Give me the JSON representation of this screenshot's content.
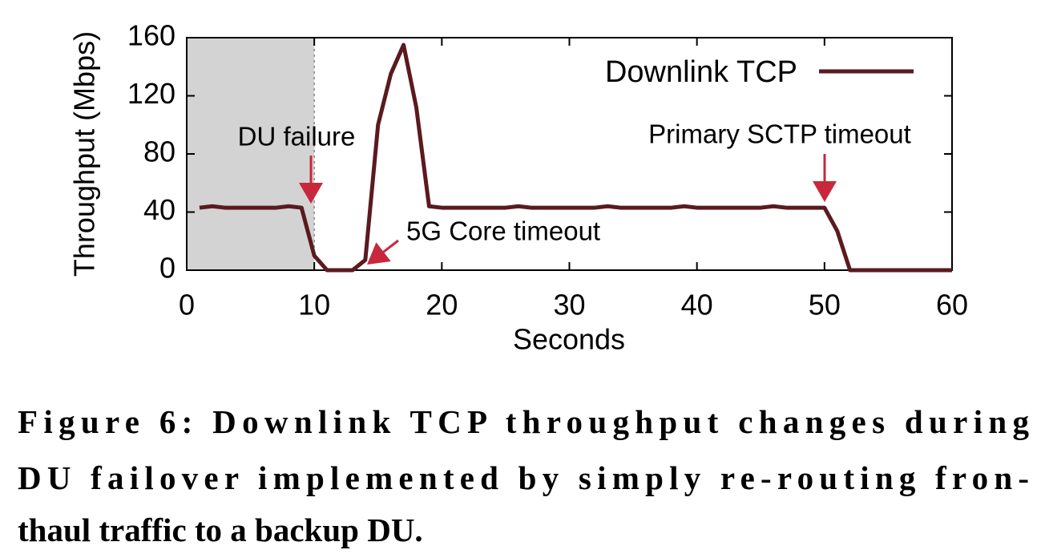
{
  "chart_data": {
    "type": "line",
    "xlabel": "Seconds",
    "ylabel": "Throughput (Mbps)",
    "x": [
      1,
      2,
      3,
      4,
      5,
      6,
      7,
      8,
      9,
      10,
      11,
      12,
      13,
      14,
      15,
      16,
      17,
      18,
      19,
      20,
      21,
      22,
      23,
      24,
      25,
      26,
      27,
      28,
      29,
      30,
      31,
      32,
      33,
      34,
      35,
      36,
      37,
      38,
      39,
      40,
      41,
      42,
      43,
      44,
      45,
      46,
      47,
      48,
      49,
      50,
      51,
      52,
      53,
      54,
      55,
      56,
      57,
      58,
      59,
      60
    ],
    "series": [
      {
        "name": "Downlink TCP",
        "color": "#5a1a1f",
        "values": [
          43,
          44,
          43,
          43,
          43,
          43,
          43,
          44,
          43,
          10,
          0,
          0,
          0,
          7,
          100,
          135,
          155,
          112,
          44,
          43,
          43,
          43,
          43,
          43,
          43,
          44,
          43,
          43,
          43,
          43,
          43,
          43,
          44,
          43,
          43,
          43,
          43,
          43,
          44,
          43,
          43,
          43,
          43,
          43,
          43,
          44,
          43,
          43,
          43,
          43,
          27,
          0,
          0,
          0,
          0,
          0,
          0,
          0,
          0,
          0
        ]
      }
    ],
    "xlim": [
      0,
      60
    ],
    "xticks": [
      0,
      10,
      20,
      30,
      40,
      50,
      60
    ],
    "ylim": [
      0,
      160
    ],
    "yticks": [
      0,
      40,
      80,
      120,
      160
    ],
    "shaded_x": [
      0,
      10
    ],
    "shade_color": "#d3d3d3",
    "legend": "top-right",
    "annotations": [
      "DU failure",
      "5G Core timeout",
      "Primary SCTP timeout"
    ],
    "annotation_color": "#c8283c"
  },
  "caption": [
    "Figure 6: Downlink TCP throughput changes during",
    "DU failover implemented by simply re-routing fron-",
    "thaul traffic to a backup DU."
  ]
}
